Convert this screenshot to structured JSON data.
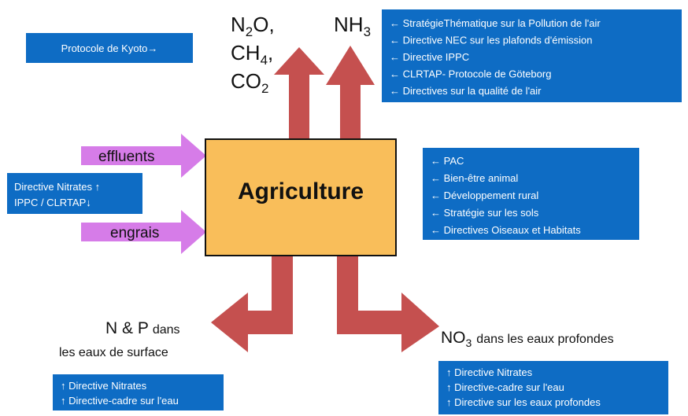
{
  "kyoto": "Protocole de Kyoto→",
  "gases": [
    {
      "base": "N",
      "sub": "2",
      "rest": "O,"
    },
    {
      "base": "CH",
      "sub": "4",
      "rest": ","
    },
    {
      "base": "CO",
      "sub": "2",
      "rest": ""
    }
  ],
  "ammonia": {
    "base": "NH",
    "sub": "3"
  },
  "air_policies": [
    "← StratégieThématique sur la Pollution de l'air",
    "← Directive NEC sur les plafonds d'émission",
    "← Directive IPPC",
    "← CLRTAP- Protocole de Göteborg",
    "← Directives sur la qualité de l'air"
  ],
  "inputs": [
    "effluents",
    "engrais"
  ],
  "input_policies": [
    "Directive Nitrates ↑",
    "IPPC / CLRTAP↓"
  ],
  "center": "Agriculture",
  "other_policies": [
    "← PAC",
    "← Bien-être animal",
    "← Développement rural",
    "← Stratégie sur les sols",
    "← Directives Oiseaux et Habitats"
  ],
  "surface": {
    "main": "N & P",
    "small": "dans",
    "line2": "les eaux de surface"
  },
  "ground": {
    "base": "NO",
    "sub": "3",
    "rest": "dans les eaux profondes"
  },
  "surface_policies": [
    "↑ Directive Nitrates",
    "↑ Directive-cadre sur l'eau"
  ],
  "ground_policies": [
    "↑ Directive Nitrates",
    "↑ Directive-cadre sur l'eau",
    "↑ Directive sur les eaux profondes"
  ]
}
